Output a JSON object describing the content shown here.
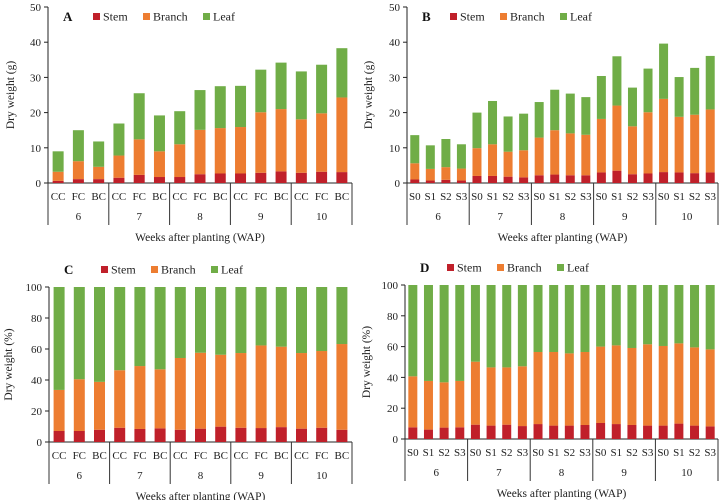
{
  "figure": {
    "colors": {
      "stem": "#c0202a",
      "branch": "#ed7d31",
      "leaf": "#70ad47"
    }
  },
  "chart_data": [
    {
      "id": "A",
      "type": "bar",
      "stacked": true,
      "panel_label": "A",
      "title": "",
      "xlabel": "Weeks after planting (WAP)",
      "ylabel": "Dry weight (g)",
      "ylim": [
        0,
        50
      ],
      "yticks": [
        "0",
        "10",
        "20",
        "30",
        "40",
        "50"
      ],
      "ytick_values": [
        0,
        10,
        20,
        30,
        40,
        50
      ],
      "legend": [
        "Stem",
        "Branch",
        "Leaf"
      ],
      "legend_position": "top",
      "groups": [
        "6",
        "7",
        "8",
        "9",
        "10"
      ],
      "subcategories": [
        "CC",
        "FC",
        "BC"
      ],
      "series": [
        {
          "name": "Stem",
          "values": [
            0.6,
            1.1,
            1.1,
            1.5,
            2.3,
            1.7,
            1.7,
            2.5,
            2.7,
            2.7,
            2.9,
            3.3,
            2.9,
            3.2,
            3.1
          ]
        },
        {
          "name": "Branch",
          "values": [
            2.6,
            5.1,
            3.5,
            6.3,
            10.1,
            7.3,
            9.3,
            12.6,
            12.9,
            13.2,
            17.2,
            17.7,
            15.2,
            16.6,
            21.2
          ]
        },
        {
          "name": "Leaf",
          "values": [
            5.8,
            8.8,
            7.2,
            9.1,
            13.1,
            10.2,
            9.4,
            11.3,
            11.9,
            11.7,
            12.1,
            13.2,
            13.6,
            13.8,
            14.0
          ]
        }
      ]
    },
    {
      "id": "B",
      "type": "bar",
      "stacked": true,
      "panel_label": "B",
      "title": "",
      "xlabel": "Weeks after planting (WAP)",
      "ylabel": "Dry weight (g)",
      "ylim": [
        0,
        50
      ],
      "yticks": [
        "0",
        "10",
        "20",
        "30",
        "40",
        "50"
      ],
      "ytick_values": [
        0,
        10,
        20,
        30,
        40,
        50
      ],
      "legend": [
        "Stem",
        "Branch",
        "Leaf"
      ],
      "legend_position": "top",
      "groups": [
        "6",
        "7",
        "8",
        "9",
        "10"
      ],
      "subcategories": [
        "S0",
        "S1",
        "S2",
        "S3"
      ],
      "series": [
        {
          "name": "Stem",
          "values": [
            1.0,
            0.7,
            0.9,
            0.7,
            2.0,
            2.0,
            1.8,
            1.6,
            2.2,
            2.4,
            2.2,
            2.2,
            3.0,
            3.5,
            2.5,
            2.7,
            3.1,
            3.0,
            2.8,
            3.0
          ]
        },
        {
          "name": "Branch",
          "values": [
            4.6,
            3.3,
            3.6,
            3.4,
            7.9,
            9.0,
            7.1,
            7.7,
            10.7,
            12.6,
            11.9,
            11.5,
            15.2,
            18.5,
            13.6,
            17.4,
            20.8,
            15.8,
            16.6,
            17.9
          ]
        },
        {
          "name": "Leaf",
          "values": [
            8.0,
            6.7,
            8.0,
            6.9,
            10.1,
            12.3,
            10.0,
            10.4,
            10.1,
            11.5,
            11.3,
            10.7,
            12.2,
            14.0,
            11.0,
            12.4,
            15.7,
            11.3,
            13.3,
            15.2
          ]
        }
      ]
    },
    {
      "id": "C",
      "type": "bar",
      "stacked": true,
      "panel_label": "C",
      "title": "",
      "xlabel": "Weeks after planting (WAP)",
      "ylabel": "Dry weight (%)",
      "ylim": [
        0,
        100
      ],
      "yticks": [
        "0",
        "20",
        "40",
        "60",
        "80",
        "100"
      ],
      "ytick_values": [
        0,
        20,
        40,
        60,
        80,
        100
      ],
      "legend": [
        "Stem",
        "Branch",
        "Leaf"
      ],
      "legend_position": "top",
      "groups": [
        "6",
        "7",
        "8",
        "9",
        "10"
      ],
      "subcategories": [
        "CC",
        "FC",
        "BC"
      ],
      "series": [
        {
          "name": "Stem",
          "values": [
            7.1,
            7.1,
            7.9,
            9.2,
            8.4,
            8.8,
            7.9,
            8.6,
            9.9,
            9.2,
            9.0,
            9.6,
            8.6,
            9.2,
            7.9
          ]
        },
        {
          "name": "Branch",
          "values": [
            26.5,
            33.4,
            30.9,
            37.1,
            40.6,
            38.1,
            46.3,
            49.0,
            46.4,
            48.2,
            53.3,
            51.9,
            48.8,
            49.5,
            55.3
          ]
        },
        {
          "name": "Leaf",
          "values": [
            66.4,
            59.5,
            61.2,
            53.7,
            51.0,
            53.1,
            45.8,
            42.4,
            43.7,
            42.6,
            37.7,
            38.5,
            42.6,
            41.3,
            36.8
          ]
        }
      ]
    },
    {
      "id": "D",
      "type": "bar",
      "stacked": true,
      "panel_label": "D",
      "title": "",
      "xlabel": "Weeks after planting (WAP)",
      "ylabel": "Dry weight (%)",
      "ylim": [
        0,
        100
      ],
      "yticks": [
        "0",
        "20",
        "40",
        "60",
        "80",
        "100"
      ],
      "ytick_values": [
        0,
        20,
        40,
        60,
        80,
        100
      ],
      "legend": [
        "Stem",
        "Branch",
        "Leaf"
      ],
      "legend_position": "top",
      "groups": [
        "6",
        "7",
        "8",
        "9",
        "10"
      ],
      "subcategories": [
        "S0",
        "S1",
        "S2",
        "S3"
      ],
      "series": [
        {
          "name": "Stem",
          "values": [
            7.6,
            6.1,
            7.4,
            7.6,
            9.3,
            8.7,
            9.3,
            8.4,
            9.7,
            8.7,
            8.7,
            9.1,
            10.4,
            9.7,
            9.1,
            8.7,
            8.7,
            10.0,
            8.7,
            8.2
          ]
        },
        {
          "name": "Branch",
          "values": [
            33.1,
            31.6,
            29.4,
            30.1,
            40.9,
            37.8,
            37.2,
            38.8,
            46.8,
            47.8,
            46.9,
            47.4,
            49.6,
            51.1,
            50.0,
            52.8,
            51.7,
            52.1,
            50.8,
            50.0
          ]
        },
        {
          "name": "Leaf",
          "values": [
            59.3,
            62.3,
            63.2,
            62.3,
            49.8,
            53.5,
            53.5,
            52.8,
            43.5,
            43.5,
            44.4,
            43.5,
            40.0,
            39.2,
            40.9,
            38.5,
            39.6,
            37.9,
            40.5,
            41.8
          ]
        }
      ]
    }
  ]
}
